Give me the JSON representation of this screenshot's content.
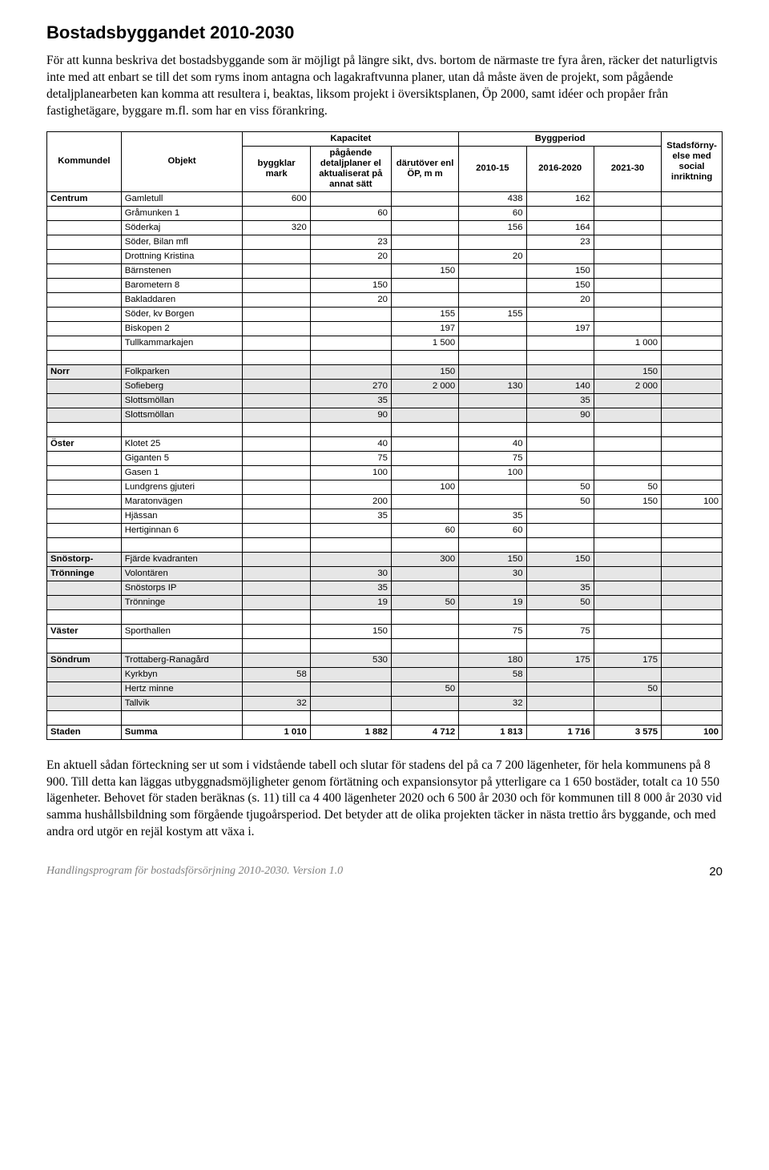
{
  "title": "Bostadsbyggandet 2010-2030",
  "intro": "För att kunna beskriva det bostadsbyggande som är möjligt på längre sikt, dvs. bortom de närmaste tre fyra åren, räcker det naturligtvis inte med att enbart se till det som ryms inom antagna och lagakraftvunna planer, utan då måste även de projekt, som pågående detaljplanearbeten kan komma att resultera i, beaktas, liksom projekt i översiktsplanen, Öp 2000, samt idéer och propåer från fastighetägare, byggare m.fl. som har en viss förankring.",
  "outro": "En aktuell sådan förteckning ser ut som i vidstående tabell och slutar för stadens del på ca 7 200 lägenheter, för hela kommunens på 8 900. Till detta kan läggas utbyggnadsmöjligheter genom förtätning och expansionsytor på ytterligare ca 1 650 bostäder, totalt ca 10 550 lägenheter. Behovet för staden beräknas (s. 11) till ca 4 400 lägenheter 2020 och 6 500 år 2030 och för kommunen till 8 000 år 2030 vid samma hushållsbildning som förgående tjugoårsperiod. Det betyder att de olika projekten täcker in nästa trettio års byggande, och med andra ord utgör en rejäl kostym att växa i.",
  "footer": "Handlingsprogram för bostadsförsörjning 2010-2030. Version 1.0",
  "page_number": "20",
  "header_row1": {
    "kapacitet": "Kapacitet",
    "byggperiod": "Byggperiod"
  },
  "header_row2": {
    "kommundel": "Kommundel",
    "objekt": "Objekt",
    "byggklar": "byggklar mark",
    "pagaende": "pågående detaljplaner el aktualiserat på annat sätt",
    "darutover": "därutöver enl ÖP, m m",
    "p1": "2010-15",
    "p2": "2016-2020",
    "p3": "2021-30",
    "stads": "Stadsförny- else med social inriktning"
  },
  "groups": [
    {
      "kommundel": "Centrum",
      "shade": false,
      "blank_after": true,
      "rows": [
        {
          "obj": "Gamletull",
          "b1": "600",
          "b2": "",
          "b3": "",
          "p1": "438",
          "p2": "162",
          "p3": "",
          "sf": ""
        },
        {
          "obj": "Gråmunken 1",
          "b1": "",
          "b2": "60",
          "b3": "",
          "p1": "60",
          "p2": "",
          "p3": "",
          "sf": ""
        },
        {
          "obj": "Söderkaj",
          "b1": "320",
          "b2": "",
          "b3": "",
          "p1": "156",
          "p2": "164",
          "p3": "",
          "sf": ""
        },
        {
          "obj": "Söder, Bilan mfl",
          "b1": "",
          "b2": "23",
          "b3": "",
          "p1": "",
          "p2": "23",
          "p3": "",
          "sf": ""
        },
        {
          "obj": "Drottning Kristina",
          "b1": "",
          "b2": "20",
          "b3": "",
          "p1": "20",
          "p2": "",
          "p3": "",
          "sf": ""
        },
        {
          "obj": "Bärnstenen",
          "b1": "",
          "b2": "",
          "b3": "150",
          "p1": "",
          "p2": "150",
          "p3": "",
          "sf": ""
        },
        {
          "obj": "Barometern 8",
          "b1": "",
          "b2": "150",
          "b3": "",
          "p1": "",
          "p2": "150",
          "p3": "",
          "sf": ""
        },
        {
          "obj": "Bakladdaren",
          "b1": "",
          "b2": "20",
          "b3": "",
          "p1": "",
          "p2": "20",
          "p3": "",
          "sf": ""
        },
        {
          "obj": "Söder, kv Borgen",
          "b1": "",
          "b2": "",
          "b3": "155",
          "p1": "155",
          "p2": "",
          "p3": "",
          "sf": ""
        },
        {
          "obj": "Biskopen 2",
          "b1": "",
          "b2": "",
          "b3": "197",
          "p1": "",
          "p2": "197",
          "p3": "",
          "sf": ""
        },
        {
          "obj": "Tullkammarkajen",
          "b1": "",
          "b2": "",
          "b3": "1 500",
          "p1": "",
          "p2": "",
          "p3": "1 000",
          "sf": ""
        }
      ]
    },
    {
      "kommundel": "Norr",
      "shade": true,
      "blank_after": true,
      "rows": [
        {
          "obj": "Folkparken",
          "b1": "",
          "b2": "",
          "b3": "150",
          "p1": "",
          "p2": "",
          "p3": "150",
          "sf": ""
        },
        {
          "obj": "Sofieberg",
          "b1": "",
          "b2": "270",
          "b3": "2 000",
          "p1": "130",
          "p2": "140",
          "p3": "2 000",
          "sf": ""
        },
        {
          "obj": "Slottsmöllan",
          "b1": "",
          "b2": "35",
          "b3": "",
          "p1": "",
          "p2": "35",
          "p3": "",
          "sf": ""
        },
        {
          "obj": "Slottsmöllan",
          "b1": "",
          "b2": "90",
          "b3": "",
          "p1": "",
          "p2": "90",
          "p3": "",
          "sf": ""
        }
      ]
    },
    {
      "kommundel": "Öster",
      "shade": false,
      "blank_after": true,
      "rows": [
        {
          "obj": "Klotet 25",
          "b1": "",
          "b2": "40",
          "b3": "",
          "p1": "40",
          "p2": "",
          "p3": "",
          "sf": ""
        },
        {
          "obj": "Giganten 5",
          "b1": "",
          "b2": "75",
          "b3": "",
          "p1": "75",
          "p2": "",
          "p3": "",
          "sf": ""
        },
        {
          "obj": "Gasen 1",
          "b1": "",
          "b2": "100",
          "b3": "",
          "p1": "100",
          "p2": "",
          "p3": "",
          "sf": ""
        },
        {
          "obj": "Lundgrens gjuteri",
          "b1": "",
          "b2": "",
          "b3": "100",
          "p1": "",
          "p2": "50",
          "p3": "50",
          "sf": ""
        },
        {
          "obj": "Maratonvägen",
          "b1": "",
          "b2": "200",
          "b3": "",
          "p1": "",
          "p2": "50",
          "p3": "150",
          "sf": "100"
        },
        {
          "obj": "Hjässan",
          "b1": "",
          "b2": "35",
          "b3": "",
          "p1": "35",
          "p2": "",
          "p3": "",
          "sf": ""
        },
        {
          "obj": "Hertiginnan 6",
          "b1": "",
          "b2": "",
          "b3": "60",
          "p1": "60",
          "p2": "",
          "p3": "",
          "sf": ""
        }
      ]
    },
    {
      "kommundel": "Snöstorp- Trönninge",
      "shade": true,
      "blank_after": true,
      "rows": [
        {
          "obj": "Fjärde kvadranten",
          "b1": "",
          "b2": "",
          "b3": "300",
          "p1": "150",
          "p2": "150",
          "p3": "",
          "sf": ""
        },
        {
          "obj": "Volontären",
          "b1": "",
          "b2": "30",
          "b3": "",
          "p1": "30",
          "p2": "",
          "p3": "",
          "sf": ""
        },
        {
          "obj": "Snöstorps IP",
          "b1": "",
          "b2": "35",
          "b3": "",
          "p1": "",
          "p2": "35",
          "p3": "",
          "sf": ""
        },
        {
          "obj": "Trönninge",
          "b1": "",
          "b2": "19",
          "b3": "50",
          "p1": "19",
          "p2": "50",
          "p3": "",
          "sf": ""
        }
      ]
    },
    {
      "kommundel": "Väster",
      "shade": false,
      "blank_after": true,
      "rows": [
        {
          "obj": "Sporthallen",
          "b1": "",
          "b2": "150",
          "b3": "",
          "p1": "75",
          "p2": "75",
          "p3": "",
          "sf": ""
        }
      ]
    },
    {
      "kommundel": "Söndrum",
      "shade": true,
      "blank_after": true,
      "rows": [
        {
          "obj": "Trottaberg-Ranagård",
          "b1": "",
          "b2": "530",
          "b3": "",
          "p1": "180",
          "p2": "175",
          "p3": "175",
          "sf": ""
        },
        {
          "obj": "Kyrkbyn",
          "b1": "58",
          "b2": "",
          "b3": "",
          "p1": "58",
          "p2": "",
          "p3": "",
          "sf": ""
        },
        {
          "obj": "Hertz minne",
          "b1": "",
          "b2": "",
          "b3": "50",
          "p1": "",
          "p2": "",
          "p3": "50",
          "sf": ""
        },
        {
          "obj": "Tallvik",
          "b1": "32",
          "b2": "",
          "b3": "",
          "p1": "32",
          "p2": "",
          "p3": "",
          "sf": ""
        }
      ]
    }
  ],
  "sum_row": {
    "kommundel": "Staden",
    "obj": "Summa",
    "b1": "1 010",
    "b2": "1 882",
    "b3": "4 712",
    "p1": "1 813",
    "p2": "1 716",
    "p3": "3 575",
    "sf": "100"
  }
}
